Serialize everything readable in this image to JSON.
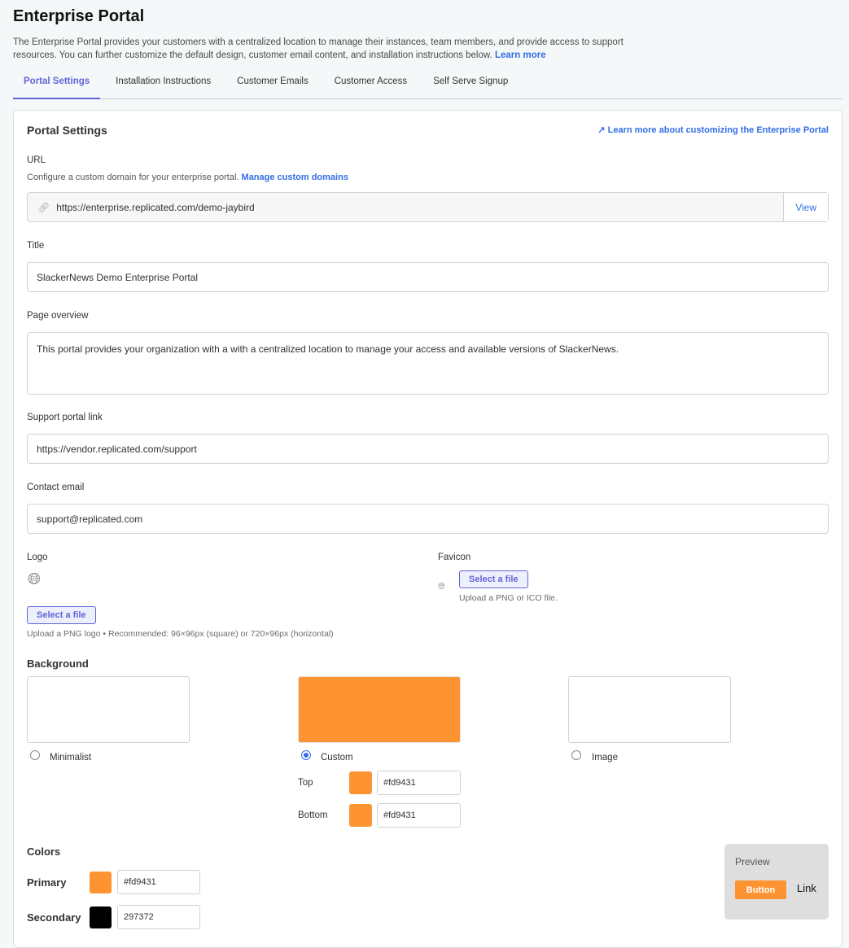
{
  "page": {
    "title": "Enterprise Portal",
    "description": "The Enterprise Portal provides your customers with a centralized location to manage their instances, team members, and provide access to support resources. You can further customize the default design, customer email content, and installation instructions below.",
    "learn_more": "Learn more"
  },
  "tabs": [
    {
      "label": "Portal Settings",
      "active": true
    },
    {
      "label": "Installation Instructions"
    },
    {
      "label": "Customer Emails"
    },
    {
      "label": "Customer Access"
    },
    {
      "label": "Self Serve Signup"
    }
  ],
  "settings": {
    "heading": "Portal Settings",
    "learn_more_link": "Learn more about customizing the Enterprise Portal",
    "url": {
      "label": "URL",
      "help": "Configure a custom domain for your enterprise portal.",
      "manage_link": "Manage custom domains",
      "value": "https://enterprise.replicated.com/demo-jaybird",
      "view": "View"
    },
    "title": {
      "label": "Title",
      "value": "SlackerNews Demo Enterprise Portal"
    },
    "overview": {
      "label": "Page overview",
      "value": "This portal provides your organization with a with a centralized location to manage your access and available versions of SlackerNews."
    },
    "support": {
      "label": "Support portal link",
      "value": "https://vendor.replicated.com/support"
    },
    "email": {
      "label": "Contact email",
      "value": "support@replicated.com"
    },
    "logo": {
      "label": "Logo",
      "button": "Select a file",
      "help": "Upload a PNG logo • Recommended: 96×96px (square) or 720×96px (horizontal)"
    },
    "favicon": {
      "label": "Favicon",
      "button": "Select a file",
      "help": "Upload a PNG or ICO file."
    },
    "background": {
      "label": "Background",
      "options": [
        {
          "label": "Minimalist",
          "selected": false
        },
        {
          "label": "Custom",
          "selected": true,
          "color": "#fd9431"
        },
        {
          "label": "Image",
          "selected": false
        }
      ],
      "top_label": "Top",
      "top_value": "#fd9431",
      "bottom_label": "Bottom",
      "bottom_value": "#fd9431"
    },
    "colors": {
      "label": "Colors",
      "primary_label": "Primary",
      "primary_value": "#fd9431",
      "primary_color": "#fd9431",
      "secondary_label": "Secondary",
      "secondary_value": "297372",
      "secondary_color": "#000000"
    },
    "preview": {
      "label": "Preview",
      "button": "Button",
      "link": "Link"
    }
  }
}
